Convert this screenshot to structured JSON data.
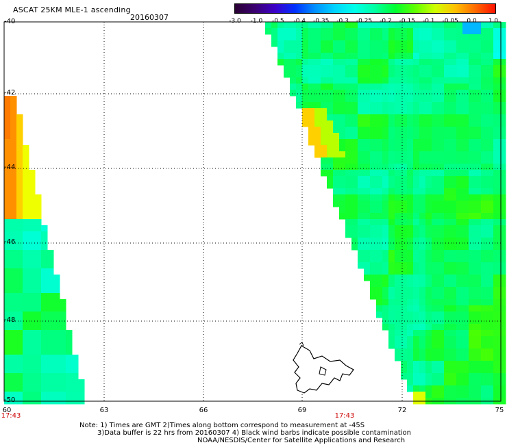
{
  "title": "ASCAT 25KM MLE-1 ascending",
  "date": "20160307",
  "colorbar": {
    "labels": [
      "-3.0",
      "-1.0",
      "-0.5",
      "-0.4",
      "-0.35",
      "-0.3",
      "-0.25",
      "-0.2",
      "-0.15",
      "-0.1",
      "-0.05",
      "0.0",
      "1.0"
    ],
    "colors": [
      "#2a0033",
      "#3a0070",
      "#3c00c8",
      "#0030ff",
      "#0090ff",
      "#00d4ff",
      "#00ffe8",
      "#00ffa0",
      "#00ff30",
      "#60ff00",
      "#d0ff00",
      "#ffc000",
      "#ff6a00",
      "#ff1000"
    ]
  },
  "axes": {
    "lat_labels": [
      "-40",
      "-42",
      "-44",
      "-46",
      "-48",
      "-50"
    ],
    "lon_labels": [
      "60",
      "63",
      "66",
      "69",
      "72",
      "75"
    ],
    "lat_range": [
      -50,
      -40
    ],
    "lon_range": [
      60,
      75
    ]
  },
  "times": {
    "left": "17:43",
    "right": "17:43"
  },
  "notes": {
    "line1": "Note: 1) Times are GMT 2)Times along bottom correspond to measurement at -45S",
    "line2": "3)Data buffer is 22 hrs from 20160307 4) Black wind barbs indicate possible contamination",
    "line3": "NOAA/NESDIS/Center for Satellite Applications and Research"
  }
}
